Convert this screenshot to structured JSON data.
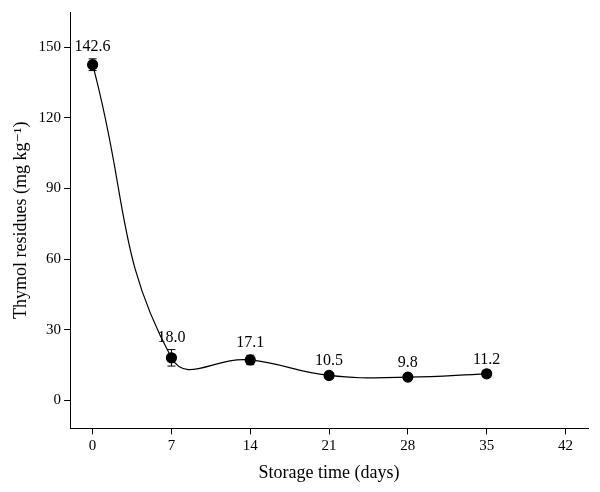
{
  "chart_data": {
    "type": "line",
    "x_label": "Storage time (days)",
    "y_label": "Thymol residues (mg kg⁻¹)",
    "x": [
      0,
      7,
      14,
      21,
      28,
      35
    ],
    "values": [
      142.6,
      18.0,
      17.1,
      10.5,
      9.8,
      11.2
    ],
    "value_labels": [
      "142.6",
      "18.0",
      "17.1",
      "10.5",
      "9.8",
      "11.2"
    ],
    "errors": [
      2.5,
      3.5,
      2.0,
      1.0,
      0.8,
      1.0
    ],
    "color": "#000000",
    "marker": "circle",
    "line_style": "solid",
    "data_labels": true,
    "grid": false,
    "xlim": [
      -2,
      44
    ],
    "xticks": [
      0,
      7,
      14,
      21,
      28,
      35,
      42
    ],
    "ylim": [
      -12,
      165
    ],
    "yticks": [
      0,
      30,
      60,
      90,
      120,
      150
    ]
  }
}
